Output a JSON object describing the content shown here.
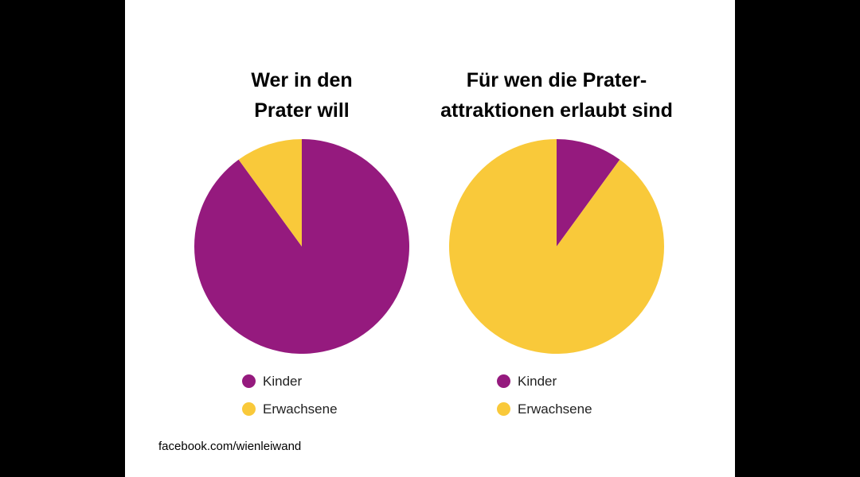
{
  "chart_data": [
    {
      "type": "pie",
      "title_lines": [
        "Wer in den",
        "Prater will"
      ],
      "slices": [
        {
          "label": "Kinder",
          "value": 90,
          "color": "#951a7e"
        },
        {
          "label": "Erwachsene",
          "value": 10,
          "color": "#f9c93a"
        }
      ],
      "legend_position": "bottom"
    },
    {
      "type": "pie",
      "title_lines": [
        "Für wen die Prater-",
        "attraktionen erlaubt sind"
      ],
      "slices": [
        {
          "label": "Kinder",
          "value": 10,
          "color": "#951a7e"
        },
        {
          "label": "Erwachsene",
          "value": 90,
          "color": "#f9c93a"
        }
      ],
      "legend_position": "bottom"
    }
  ],
  "footer": {
    "text": "facebook.com/wienleiwand"
  }
}
